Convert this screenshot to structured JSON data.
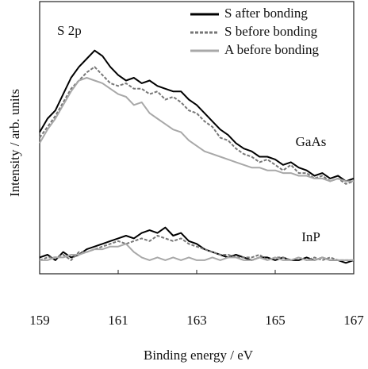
{
  "chart_data": {
    "type": "line",
    "title": "S 2p",
    "xlabel": "Binding energy / eV",
    "ylabel": "Intensity / arb. units",
    "annotations": [
      "GaAs",
      "InP"
    ],
    "x": [
      159,
      159.2,
      159.4,
      159.6,
      159.8,
      160,
      160.2,
      160.4,
      160.6,
      160.8,
      161,
      161.2,
      161.4,
      161.6,
      161.8,
      162,
      162.2,
      162.4,
      162.6,
      162.8,
      163,
      163.2,
      163.4,
      163.6,
      163.8,
      164,
      164.2,
      164.4,
      164.6,
      164.8,
      165,
      165.2,
      165.4,
      165.6,
      165.8,
      166,
      166.2,
      166.4,
      166.6,
      166.8,
      167
    ],
    "xlim": [
      159,
      167
    ],
    "xticks": [
      159,
      161,
      163,
      165,
      167
    ],
    "ylim": [
      0,
      100
    ],
    "legend": "upper right",
    "series": [
      {
        "name": "S after bonding",
        "color": "#000000",
        "style": "solid",
        "values": [
          52,
          57,
          60,
          66,
          72,
          76,
          79,
          82,
          80,
          76,
          73,
          71,
          72,
          70,
          71,
          69,
          68,
          67,
          67,
          64,
          62,
          59,
          56,
          53,
          51,
          48,
          46,
          45,
          43,
          43,
          42,
          40,
          41,
          39,
          38,
          36,
          37,
          35,
          36,
          34,
          35
        ]
      },
      {
        "name": "S before bonding",
        "color": "#777777",
        "style": "dashed",
        "values": [
          50,
          54,
          58,
          63,
          68,
          71,
          74,
          76,
          73,
          70,
          69,
          70,
          68,
          68,
          66,
          67,
          64,
          65,
          63,
          60,
          59,
          56,
          54,
          50,
          49,
          46,
          44,
          43,
          41,
          42,
          40,
          38,
          40,
          37,
          37,
          35,
          36,
          34,
          35,
          33,
          34
        ]
      },
      {
        "name": "A before bonding",
        "color": "#a8a8a8",
        "style": "solid",
        "values": [
          48,
          53,
          57,
          62,
          67,
          71,
          72,
          71,
          70,
          68,
          66,
          65,
          62,
          63,
          59,
          57,
          55,
          53,
          52,
          49,
          47,
          45,
          44,
          43,
          42,
          41,
          40,
          39,
          39,
          38,
          38,
          37,
          37,
          36,
          36,
          35,
          35,
          34,
          35,
          34,
          34
        ]
      },
      {
        "name": "S after bonding",
        "color": "#000000",
        "style": "solid",
        "values": [
          6,
          7,
          5,
          8,
          6,
          7,
          9,
          10,
          11,
          12,
          13,
          14,
          13,
          15,
          16,
          15,
          17,
          14,
          15,
          12,
          11,
          9,
          8,
          7,
          6,
          7,
          6,
          5,
          6,
          6,
          5,
          6,
          5,
          5,
          6,
          5,
          6,
          5,
          5,
          4,
          5
        ]
      },
      {
        "name": "S before bonding",
        "color": "#777777",
        "style": "dashed",
        "values": [
          5,
          6,
          6,
          7,
          5,
          8,
          8,
          9,
          10,
          11,
          12,
          11,
          12,
          13,
          12,
          14,
          13,
          12,
          13,
          11,
          10,
          9,
          8,
          7,
          7,
          6,
          6,
          6,
          7,
          5,
          6,
          6,
          5,
          6,
          5,
          6,
          5,
          6,
          5,
          5,
          5
        ]
      },
      {
        "name": "A before bonding",
        "color": "#a8a8a8",
        "style": "solid",
        "values": [
          5,
          5,
          6,
          6,
          7,
          7,
          8,
          9,
          9,
          10,
          10,
          11,
          8,
          6,
          5,
          6,
          5,
          6,
          5,
          6,
          5,
          5,
          6,
          5,
          6,
          6,
          5,
          5,
          6,
          5,
          6,
          5,
          5,
          6,
          5,
          5,
          6,
          5,
          5,
          5,
          5
        ]
      }
    ]
  }
}
